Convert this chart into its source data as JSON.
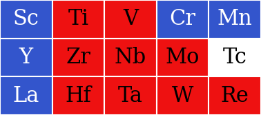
{
  "grid": [
    [
      {
        "symbol": "Sc",
        "bg": "#3355cc",
        "fg": "white"
      },
      {
        "symbol": "Ti",
        "bg": "#ee1111",
        "fg": "black"
      },
      {
        "symbol": "V",
        "bg": "#ee1111",
        "fg": "black"
      },
      {
        "symbol": "Cr",
        "bg": "#3355cc",
        "fg": "white"
      },
      {
        "symbol": "Mn",
        "bg": "#3355cc",
        "fg": "white"
      }
    ],
    [
      {
        "symbol": "Y",
        "bg": "#3355cc",
        "fg": "white"
      },
      {
        "symbol": "Zr",
        "bg": "#ee1111",
        "fg": "black"
      },
      {
        "symbol": "Nb",
        "bg": "#ee1111",
        "fg": "black"
      },
      {
        "symbol": "Mo",
        "bg": "#ee1111",
        "fg": "black"
      },
      {
        "symbol": "Tc",
        "bg": "#ffffff",
        "fg": "black"
      }
    ],
    [
      {
        "symbol": "La",
        "bg": "#3355cc",
        "fg": "white"
      },
      {
        "symbol": "Hf",
        "bg": "#ee1111",
        "fg": "black"
      },
      {
        "symbol": "Ta",
        "bg": "#ee1111",
        "fg": "black"
      },
      {
        "symbol": "W",
        "bg": "#ee1111",
        "fg": "black"
      },
      {
        "symbol": "Re",
        "bg": "#ee1111",
        "fg": "black"
      }
    ]
  ],
  "nrows": 3,
  "ncols": 5,
  "border_color": "#ffffff",
  "border_lw": 1.5,
  "font_size": 22,
  "font_family": "DejaVu Serif",
  "fig_width": 3.78,
  "fig_height": 1.67,
  "dpi": 100
}
